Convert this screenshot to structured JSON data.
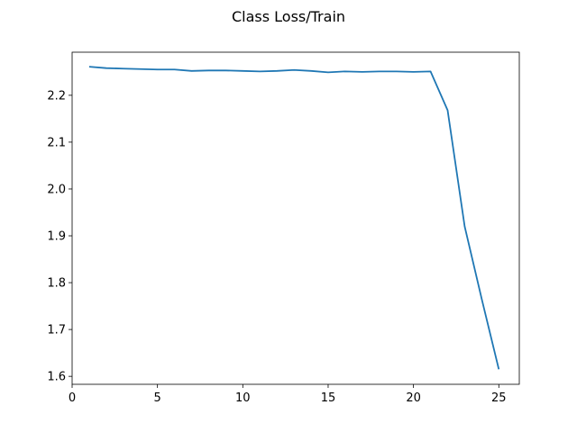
{
  "chart_data": {
    "type": "line",
    "title": "Class Loss/Train",
    "xlabel": "",
    "ylabel": "",
    "xlim": [
      0,
      26.2
    ],
    "ylim": [
      1.583,
      2.292
    ],
    "xticks": [
      0,
      5,
      10,
      15,
      20,
      25
    ],
    "yticks": [
      1.6,
      1.7,
      1.8,
      1.9,
      2.0,
      2.1,
      2.2
    ],
    "xtick_labels": [
      "0",
      "5",
      "10",
      "15",
      "20",
      "25"
    ],
    "ytick_labels": [
      "1.6",
      "1.7",
      "1.8",
      "1.9",
      "2.0",
      "2.1",
      "2.2"
    ],
    "grid": false,
    "legend": "none",
    "line_color": "#1f77b4",
    "series": [
      {
        "x": [
          1,
          2,
          3,
          4,
          5,
          6,
          7,
          8,
          9,
          10,
          11,
          12,
          13,
          14,
          15,
          16,
          17,
          18,
          19,
          20,
          21,
          22,
          23,
          24,
          25
        ],
        "values": [
          2.261,
          2.258,
          2.257,
          2.256,
          2.255,
          2.255,
          2.252,
          2.253,
          2.253,
          2.252,
          2.251,
          2.252,
          2.254,
          2.252,
          2.249,
          2.251,
          2.25,
          2.251,
          2.251,
          2.25,
          2.251,
          2.168,
          1.92,
          1.765,
          1.615
        ]
      }
    ]
  }
}
